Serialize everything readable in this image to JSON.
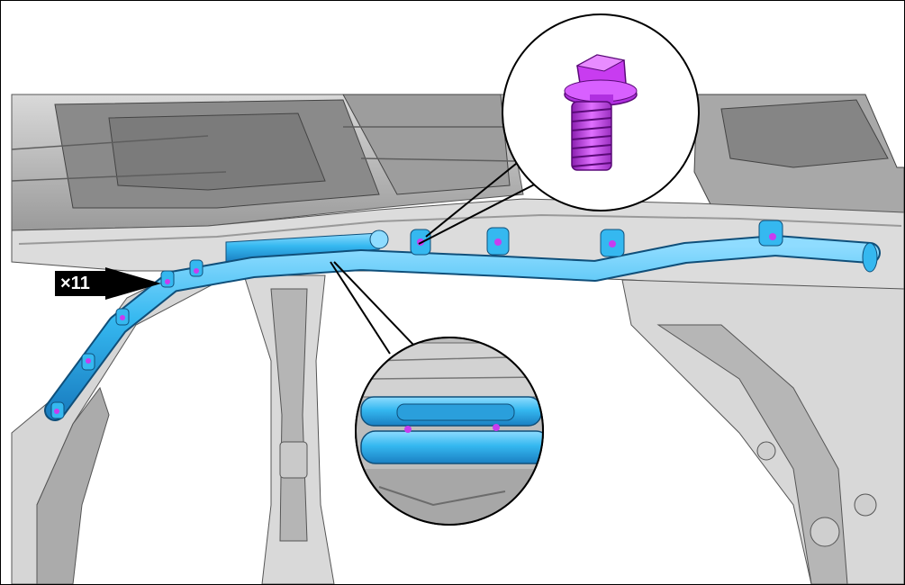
{
  "callout": {
    "quantity_text": "×11"
  },
  "colors": {
    "airbag": "#35b8f0",
    "airbag_dark": "#1f8fd0",
    "bolt": "#c83cf0",
    "bolt_dark": "#8a1fb0",
    "body_light": "#e6e6e6",
    "body_mid": "#c4c4c4",
    "body_dark": "#8e8e8e",
    "outline": "#000000"
  },
  "icons": [
    "bolt-icon",
    "arrow-icon"
  ]
}
